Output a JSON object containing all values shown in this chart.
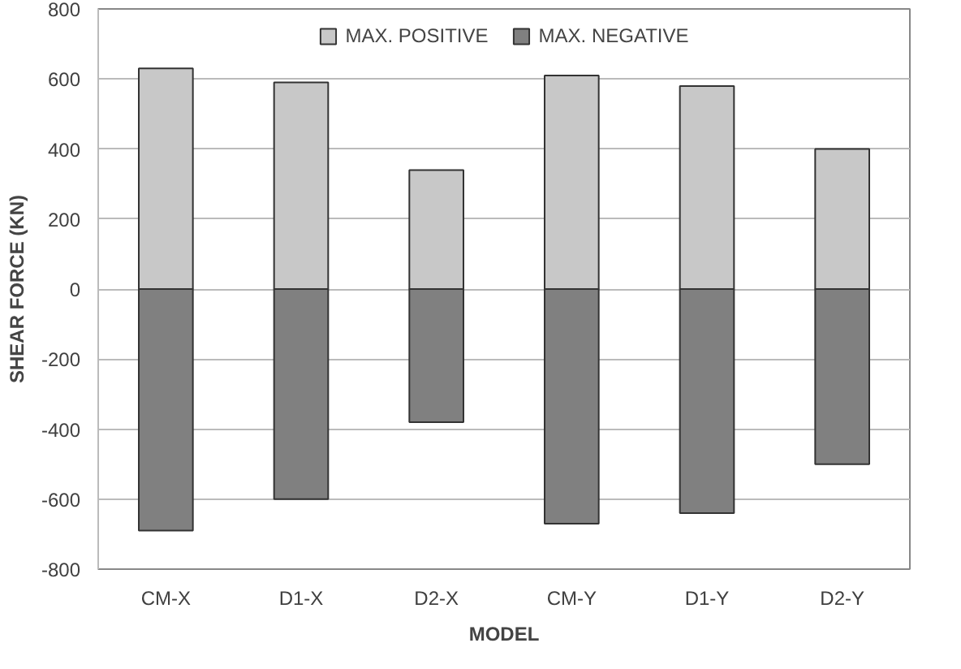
{
  "chart_data": {
    "type": "bar",
    "stacked": true,
    "xlabel": "MODEL",
    "ylabel": "SHEAR FORCE (KN)",
    "categories": [
      "CM-X",
      "D1-X",
      "D2-X",
      "CM-Y",
      "D1-Y",
      "D2-Y"
    ],
    "series": [
      {
        "name": "MAX. POSITIVE",
        "color": "#c8c8c8",
        "values": [
          630,
          590,
          340,
          610,
          580,
          400
        ]
      },
      {
        "name": "MAX. NEGATIVE",
        "color": "#808080",
        "values": [
          -690,
          -600,
          -380,
          -670,
          -640,
          -500
        ]
      }
    ],
    "ylim": [
      -800,
      800
    ],
    "yticks": [
      -800,
      -600,
      -400,
      -200,
      0,
      200,
      400,
      600,
      800
    ],
    "grid": "y",
    "legend": "top"
  }
}
